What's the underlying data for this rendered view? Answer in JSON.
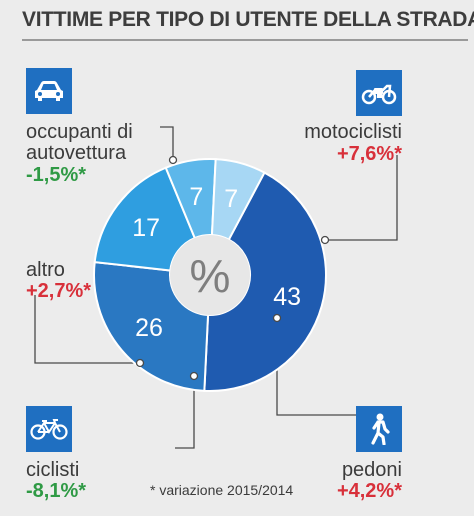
{
  "title": "VITTIME PER TIPO DI UTENTE DELLA STRADA",
  "center_label": "%",
  "footnote": "* variazione 2015/2014",
  "colors": {
    "icon_bg": "#1f6fc1",
    "positive": "#d8303a",
    "negative": "#2f9a45"
  },
  "categories": {
    "auto": {
      "label_line1": "occupanti di",
      "label_line2": "autovettura",
      "change": "-1,5%*",
      "icon": "car-icon"
    },
    "moto": {
      "label": "motociclisti",
      "change": "+7,6%*",
      "icon": "motorcycle-icon"
    },
    "altro": {
      "label": "altro",
      "change": "+2,7%*"
    },
    "ciclisti": {
      "label": "ciclisti",
      "change": "-8,1%*",
      "icon": "bicycle-icon"
    },
    "pedoni": {
      "label": "pedoni",
      "change": "+4,2%*",
      "icon": "pedestrian-icon"
    }
  },
  "chart_data": {
    "type": "pie",
    "donut": true,
    "unit": "%",
    "slices": [
      {
        "name": "occupanti di autovettura",
        "value": 43,
        "label": "43",
        "color": "#1f5bb0"
      },
      {
        "name": "motociclisti",
        "value": 26,
        "label": "26",
        "color": "#2a78c2"
      },
      {
        "name": "pedoni",
        "value": 17,
        "label": "17",
        "color": "#2f9ee0"
      },
      {
        "name": "ciclisti",
        "value": 7,
        "label": "7",
        "color": "#5db7ea"
      },
      {
        "name": "altro",
        "value": 7,
        "label": "7",
        "color": "#a7d7f4"
      }
    ]
  }
}
